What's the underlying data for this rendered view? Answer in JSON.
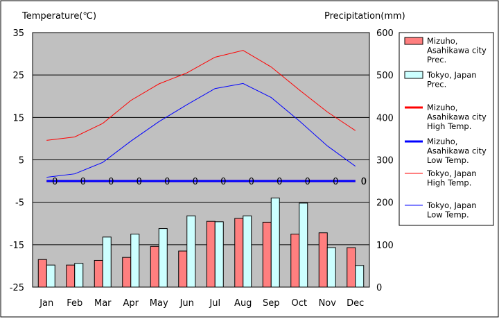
{
  "chart_data": {
    "type": "bar",
    "categories": [
      "Jan",
      "Feb",
      "Mar",
      "Apr",
      "May",
      "Jun",
      "Jul",
      "Aug",
      "Sep",
      "Oct",
      "Nov",
      "Dec"
    ],
    "y_left": {
      "label": "Temperature(℃)",
      "ylim": [
        -25,
        35
      ],
      "ticks": [
        "35",
        "25",
        "15",
        "5",
        "-5",
        "-15",
        "-25"
      ]
    },
    "y_right": {
      "label": "Precipitation(mm)",
      "ylim": [
        0,
        600
      ],
      "ticks": [
        "600",
        "500",
        "400",
        "300",
        "200",
        "100",
        "0"
      ]
    },
    "grid": true,
    "legend_position": "right",
    "bar_series": [
      {
        "name": "Mizuho, Asahikawa city Prec.",
        "color": "#ff7f7f",
        "values": [
          65,
          52,
          63,
          70,
          96,
          85,
          155,
          162,
          153,
          125,
          128,
          93
        ]
      },
      {
        "name": "Tokyo, Japan Prec.",
        "color": "#ccffff",
        "values": [
          52,
          56,
          118,
          125,
          138,
          168,
          154,
          168,
          210,
          198,
          93,
          51
        ]
      }
    ],
    "line_series": [
      {
        "name": "Mizuho, Asahikawa city High Temp.",
        "color": "#ff0000",
        "width": 3,
        "values": [
          0,
          0,
          0,
          0,
          0,
          0,
          0,
          0,
          0,
          0,
          0,
          0
        ]
      },
      {
        "name": "Mizuho, Asahikawa city Low Temp.",
        "color": "#0000ff",
        "width": 3,
        "values": [
          0,
          0,
          0,
          0,
          0,
          0,
          0,
          0,
          0,
          0,
          0,
          0
        ]
      },
      {
        "name": "Tokyo, Japan High Temp.",
        "color": "#ff0000",
        "width": 1,
        "values": [
          9.6,
          10.4,
          13.6,
          19.0,
          22.9,
          25.5,
          29.2,
          30.8,
          26.9,
          21.5,
          16.3,
          11.9
        ]
      },
      {
        "name": "Tokyo, Japan Low Temp.",
        "color": "#0000ff",
        "width": 1,
        "values": [
          0.9,
          1.7,
          4.4,
          9.4,
          14.0,
          18.0,
          21.8,
          23.0,
          19.7,
          14.2,
          8.3,
          3.5
        ]
      }
    ],
    "zero_labels": [
      "0",
      "0",
      "0",
      "0",
      "0",
      "0",
      "0",
      "0",
      "0",
      "0",
      "0",
      "0",
      "0"
    ],
    "legend_labels": [
      [
        "Mizuho,",
        "Asahikawa city",
        "Prec."
      ],
      [
        "Tokyo, Japan",
        "Prec."
      ],
      [
        "Mizuho,",
        "Asahikawa city",
        "High Temp."
      ],
      [
        "Mizuho,",
        "Asahikawa city",
        "Low Temp."
      ],
      [
        "Tokyo, Japan",
        "High Temp."
      ],
      [
        "Tokyo, Japan",
        "Low Temp."
      ]
    ]
  }
}
